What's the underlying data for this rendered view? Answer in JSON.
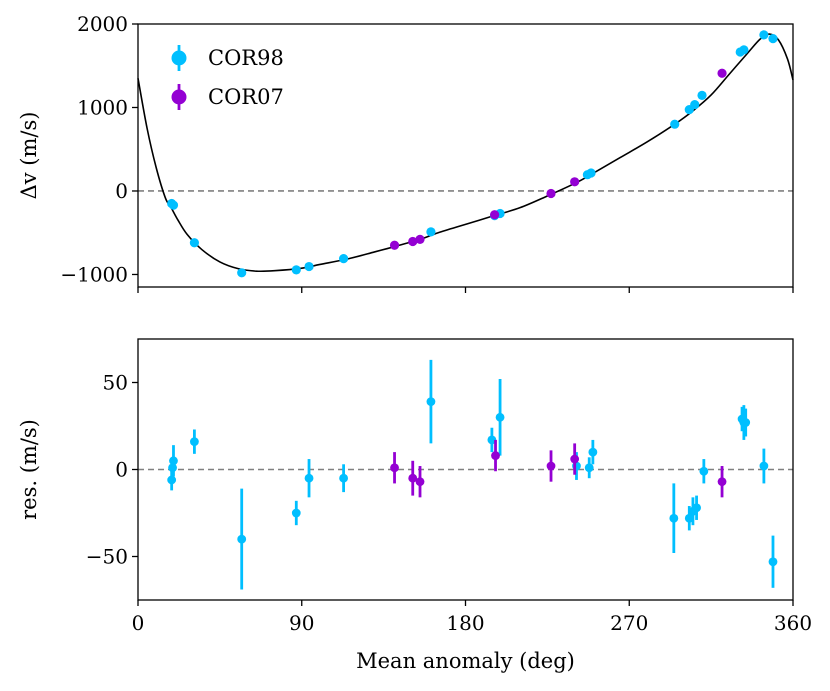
{
  "chart_data": [
    {
      "type": "scatter",
      "panel": "top",
      "title": "",
      "xlabel": "",
      "ylabel": "Δv (m/s)",
      "xlim": [
        0,
        360
      ],
      "ylim": [
        -1150,
        2000
      ],
      "yticks": [
        -1000,
        0,
        1000,
        2000
      ],
      "ytick_labels": [
        "−1000",
        "0",
        "1000",
        "2000"
      ],
      "xticks": [
        0,
        90,
        180,
        270,
        360
      ],
      "reference_line": 0,
      "grid": false,
      "legend_placement": "upper-left",
      "legend": [
        {
          "name": "COR98",
          "color": "#00bfff"
        },
        {
          "name": "COR07",
          "color": "#9400d3"
        }
      ],
      "model_curve": {
        "color": "#000000",
        "points": [
          [
            0,
            1350
          ],
          [
            5,
            750
          ],
          [
            10,
            280
          ],
          [
            15,
            -80
          ],
          [
            18,
            -190
          ],
          [
            22,
            -350
          ],
          [
            27,
            -520
          ],
          [
            35,
            -700
          ],
          [
            45,
            -850
          ],
          [
            55,
            -930
          ],
          [
            65,
            -960
          ],
          [
            75,
            -955
          ],
          [
            90,
            -925
          ],
          [
            100,
            -880
          ],
          [
            115,
            -815
          ],
          [
            130,
            -730
          ],
          [
            142,
            -660
          ],
          [
            155,
            -580
          ],
          [
            165,
            -500
          ],
          [
            180,
            -400
          ],
          [
            195,
            -300
          ],
          [
            210,
            -200
          ],
          [
            225,
            -60
          ],
          [
            240,
            90
          ],
          [
            250,
            210
          ],
          [
            265,
            400
          ],
          [
            280,
            590
          ],
          [
            295,
            800
          ],
          [
            305,
            960
          ],
          [
            315,
            1150
          ],
          [
            325,
            1400
          ],
          [
            335,
            1650
          ],
          [
            342,
            1820
          ],
          [
            347,
            1880
          ],
          [
            352,
            1810
          ],
          [
            357,
            1580
          ],
          [
            360,
            1330
          ]
        ]
      },
      "series": [
        {
          "name": "COR98",
          "color": "#00bfff",
          "points": [
            [
              18.5,
              -150
            ],
            [
              19.5,
              -170
            ],
            [
              31,
              -620
            ],
            [
              57,
              -980
            ],
            [
              87,
              -945
            ],
            [
              94,
              -905
            ],
            [
              113,
              -810
            ],
            [
              161,
              -490
            ],
            [
              196,
              -295
            ],
            [
              199,
              -270
            ],
            [
              247,
              195
            ],
            [
              249,
              215
            ],
            [
              295,
              800
            ],
            [
              303,
              975
            ],
            [
              306,
              1035
            ],
            [
              310,
              1145
            ],
            [
              331,
              1665
            ],
            [
              333,
              1690
            ],
            [
              344,
              1870
            ],
            [
              349,
              1825
            ]
          ]
        },
        {
          "name": "COR07",
          "color": "#9400d3",
          "points": [
            [
              141,
              -650
            ],
            [
              151,
              -605
            ],
            [
              155,
              -580
            ],
            [
              196,
              -285
            ],
            [
              227,
              -30
            ],
            [
              240,
              110
            ],
            [
              321,
              1410
            ]
          ]
        }
      ]
    },
    {
      "type": "scatter",
      "panel": "bottom",
      "title": "",
      "xlabel": "Mean anomaly (deg)",
      "ylabel": "res. (m/s)",
      "xlim": [
        0,
        360
      ],
      "ylim": [
        -75,
        75
      ],
      "yticks": [
        -50,
        0,
        50
      ],
      "ytick_labels": [
        "−50",
        "0",
        "50"
      ],
      "xticks": [
        0,
        90,
        180,
        270,
        360
      ],
      "xtick_labels": [
        "0",
        "90",
        "180",
        "270",
        "360"
      ],
      "reference_line": 0,
      "grid": false,
      "series": [
        {
          "name": "COR98",
          "color": "#00bfff",
          "points": [
            {
              "x": 18.5,
              "y": -6,
              "err": 6
            },
            {
              "x": 19,
              "y": 1,
              "err": 6
            },
            {
              "x": 19.5,
              "y": 5,
              "err": 9
            },
            {
              "x": 31,
              "y": 16,
              "err": 7
            },
            {
              "x": 57,
              "y": -40,
              "err": 29
            },
            {
              "x": 87,
              "y": -25,
              "err": 7
            },
            {
              "x": 94,
              "y": -5,
              "err": 11
            },
            {
              "x": 113,
              "y": -5,
              "err": 8
            },
            {
              "x": 161,
              "y": 39,
              "err": 24
            },
            {
              "x": 194.5,
              "y": 17,
              "err": 7
            },
            {
              "x": 199,
              "y": 30,
              "err": 22
            },
            {
              "x": 241,
              "y": 2,
              "err": 8
            },
            {
              "x": 248,
              "y": 1,
              "err": 6
            },
            {
              "x": 250,
              "y": 10,
              "err": 7
            },
            {
              "x": 294.5,
              "y": -28,
              "err": 20
            },
            {
              "x": 303,
              "y": -28,
              "err": 7
            },
            {
              "x": 305,
              "y": -24,
              "err": 8
            },
            {
              "x": 307,
              "y": -22,
              "err": 7
            },
            {
              "x": 311,
              "y": -1,
              "err": 7
            },
            {
              "x": 332,
              "y": 29,
              "err": 7
            },
            {
              "x": 333,
              "y": 27,
              "err": 10
            },
            {
              "x": 334,
              "y": 27,
              "err": 8
            },
            {
              "x": 344,
              "y": 2,
              "err": 10
            },
            {
              "x": 349,
              "y": -53,
              "err": 15
            }
          ]
        },
        {
          "name": "COR07",
          "color": "#9400d3",
          "points": [
            {
              "x": 141,
              "y": 1,
              "err": 9
            },
            {
              "x": 151,
              "y": -5,
              "err": 10
            },
            {
              "x": 155,
              "y": -7,
              "err": 9
            },
            {
              "x": 196.5,
              "y": 8,
              "err": 9
            },
            {
              "x": 227,
              "y": 2,
              "err": 9
            },
            {
              "x": 240,
              "y": 6,
              "err": 9
            },
            {
              "x": 321,
              "y": -7,
              "err": 9
            }
          ]
        }
      ]
    }
  ]
}
